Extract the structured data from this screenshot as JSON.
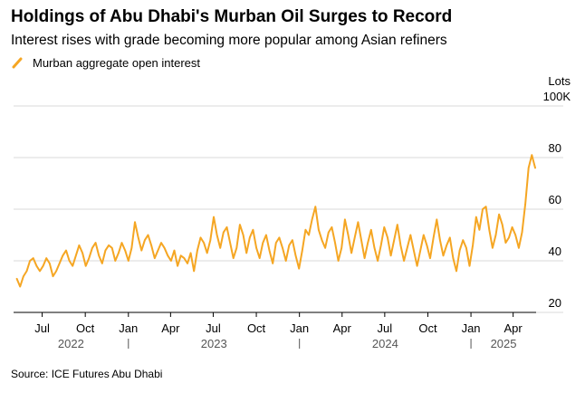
{
  "title": "Holdings of Abu Dhabi's Murban Oil Surges to Record",
  "subtitle": "Interest rises with grade becoming more popular among Asian refiners",
  "source": "Source: ICE Futures Abu Dhabi",
  "colors": {
    "line": "#f5a623",
    "grid": "#d9d9d9",
    "axis": "#000000"
  },
  "chart_data": {
    "type": "line",
    "title": "Holdings of Abu Dhabi's Murban Oil Surges to Record",
    "subtitle": "Interest rises with grade becoming more popular among Asian refiners",
    "unit_top": "Lots",
    "unit_scale_label": "100K",
    "ylim": [
      20,
      100
    ],
    "y_ticks": [
      20,
      40,
      60,
      80
    ],
    "y_tick_labels": [
      "20",
      "40",
      "60",
      "80"
    ],
    "x_range": [
      "2022-05-01",
      "2025-05-20"
    ],
    "x_ticks": [
      {
        "date": "2022-07-01",
        "label": "Jul"
      },
      {
        "date": "2022-10-01",
        "label": "Oct"
      },
      {
        "date": "2023-01-01",
        "label": "Jan"
      },
      {
        "date": "2023-04-01",
        "label": "Apr"
      },
      {
        "date": "2023-07-01",
        "label": "Jul"
      },
      {
        "date": "2023-10-01",
        "label": "Oct"
      },
      {
        "date": "2024-01-01",
        "label": "Jan"
      },
      {
        "date": "2024-04-01",
        "label": "Apr"
      },
      {
        "date": "2024-07-01",
        "label": "Jul"
      },
      {
        "date": "2024-10-01",
        "label": "Oct"
      },
      {
        "date": "2025-01-01",
        "label": "Jan"
      },
      {
        "date": "2025-04-01",
        "label": "Apr"
      }
    ],
    "year_labels": [
      {
        "label": "2022",
        "from": "2022-05-01",
        "to": "2023-01-01"
      },
      {
        "label": "2023",
        "from": "2023-01-01",
        "to": "2024-01-01"
      },
      {
        "label": "2024",
        "from": "2024-01-01",
        "to": "2025-01-01"
      },
      {
        "label": "2025",
        "from": "2025-01-01",
        "to": "2025-05-20"
      }
    ],
    "grid": true,
    "legend_position": "top-left",
    "series": [
      {
        "name": "Murban aggregate open interest",
        "color": "#f5a623",
        "x": [
          "2022-05-08",
          "2022-05-15",
          "2022-05-22",
          "2022-05-29",
          "2022-06-05",
          "2022-06-12",
          "2022-06-19",
          "2022-06-26",
          "2022-07-03",
          "2022-07-10",
          "2022-07-17",
          "2022-07-24",
          "2022-07-31",
          "2022-08-07",
          "2022-08-14",
          "2022-08-21",
          "2022-08-28",
          "2022-09-04",
          "2022-09-11",
          "2022-09-18",
          "2022-09-25",
          "2022-10-02",
          "2022-10-09",
          "2022-10-16",
          "2022-10-23",
          "2022-10-30",
          "2022-11-06",
          "2022-11-13",
          "2022-11-20",
          "2022-11-27",
          "2022-12-04",
          "2022-12-11",
          "2022-12-18",
          "2022-12-25",
          "2023-01-01",
          "2023-01-08",
          "2023-01-15",
          "2023-01-22",
          "2023-01-29",
          "2023-02-05",
          "2023-02-12",
          "2023-02-19",
          "2023-02-26",
          "2023-03-05",
          "2023-03-12",
          "2023-03-19",
          "2023-03-26",
          "2023-04-02",
          "2023-04-09",
          "2023-04-16",
          "2023-04-23",
          "2023-04-30",
          "2023-05-07",
          "2023-05-14",
          "2023-05-21",
          "2023-05-28",
          "2023-06-04",
          "2023-06-11",
          "2023-06-18",
          "2023-06-25",
          "2023-07-02",
          "2023-07-09",
          "2023-07-16",
          "2023-07-23",
          "2023-07-30",
          "2023-08-06",
          "2023-08-13",
          "2023-08-20",
          "2023-08-27",
          "2023-09-03",
          "2023-09-10",
          "2023-09-17",
          "2023-09-24",
          "2023-10-01",
          "2023-10-08",
          "2023-10-15",
          "2023-10-22",
          "2023-10-29",
          "2023-11-05",
          "2023-11-12",
          "2023-11-19",
          "2023-11-26",
          "2023-12-03",
          "2023-12-10",
          "2023-12-17",
          "2023-12-24",
          "2023-12-31",
          "2024-01-07",
          "2024-01-14",
          "2024-01-21",
          "2024-01-28",
          "2024-02-04",
          "2024-02-11",
          "2024-02-18",
          "2024-02-25",
          "2024-03-03",
          "2024-03-10",
          "2024-03-17",
          "2024-03-24",
          "2024-03-31",
          "2024-04-07",
          "2024-04-14",
          "2024-04-21",
          "2024-04-28",
          "2024-05-05",
          "2024-05-12",
          "2024-05-19",
          "2024-05-26",
          "2024-06-02",
          "2024-06-09",
          "2024-06-16",
          "2024-06-23",
          "2024-06-30",
          "2024-07-07",
          "2024-07-14",
          "2024-07-21",
          "2024-07-28",
          "2024-08-04",
          "2024-08-11",
          "2024-08-18",
          "2024-08-25",
          "2024-09-01",
          "2024-09-08",
          "2024-09-15",
          "2024-09-22",
          "2024-09-29",
          "2024-10-06",
          "2024-10-13",
          "2024-10-20",
          "2024-10-27",
          "2024-11-03",
          "2024-11-10",
          "2024-11-17",
          "2024-11-24",
          "2024-12-01",
          "2024-12-08",
          "2024-12-15",
          "2024-12-22",
          "2024-12-29",
          "2025-01-05",
          "2025-01-12",
          "2025-01-19",
          "2025-01-26",
          "2025-02-02",
          "2025-02-09",
          "2025-02-16",
          "2025-02-23",
          "2025-03-02",
          "2025-03-09",
          "2025-03-16",
          "2025-03-23",
          "2025-03-30",
          "2025-04-06",
          "2025-04-13",
          "2025-04-20",
          "2025-04-27",
          "2025-05-04",
          "2025-05-11",
          "2025-05-18"
        ],
        "values": [
          33,
          30,
          34,
          36,
          40,
          41,
          38,
          36,
          38,
          41,
          39,
          34,
          36,
          39,
          42,
          44,
          40,
          38,
          42,
          46,
          43,
          38,
          41,
          45,
          47,
          42,
          39,
          44,
          46,
          45,
          40,
          43,
          47,
          44,
          40,
          45,
          55,
          49,
          44,
          48,
          50,
          46,
          41,
          44,
          47,
          45,
          42,
          40,
          44,
          38,
          42,
          41,
          39,
          43,
          36,
          44,
          49,
          47,
          43,
          48,
          57,
          50,
          45,
          51,
          53,
          47,
          41,
          45,
          54,
          50,
          43,
          49,
          52,
          45,
          41,
          47,
          50,
          44,
          39,
          47,
          49,
          45,
          40,
          46,
          48,
          42,
          37,
          44,
          52,
          50,
          56,
          61,
          52,
          48,
          45,
          51,
          53,
          47,
          40,
          45,
          56,
          50,
          43,
          49,
          55,
          48,
          41,
          47,
          52,
          45,
          40,
          46,
          53,
          49,
          42,
          48,
          54,
          46,
          40,
          45,
          50,
          44,
          38,
          44,
          50,
          46,
          41,
          49,
          56,
          48,
          42,
          46,
          49,
          41,
          36,
          44,
          48,
          45,
          38,
          46,
          57,
          52,
          60,
          61,
          52,
          45,
          50,
          58,
          54,
          47,
          49,
          53,
          50,
          45,
          51,
          62,
          76,
          81,
          76
        ]
      }
    ]
  }
}
